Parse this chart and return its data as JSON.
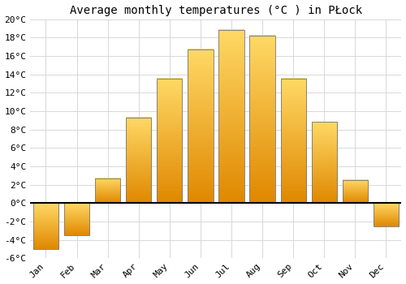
{
  "title": "Average monthly temperatures (°C ) in PŁock",
  "months": [
    "Jan",
    "Feb",
    "Mar",
    "Apr",
    "May",
    "Jun",
    "Jul",
    "Aug",
    "Sep",
    "Oct",
    "Nov",
    "Dec"
  ],
  "values": [
    -5.0,
    -3.5,
    2.7,
    9.3,
    13.5,
    16.7,
    18.8,
    18.2,
    13.5,
    8.8,
    2.5,
    -2.5
  ],
  "bar_color_top": "#FFD966",
  "bar_color_bottom": "#E08800",
  "bar_edge_color": "#777777",
  "ylim": [
    -6,
    20
  ],
  "yticks": [
    -6,
    -4,
    -2,
    0,
    2,
    4,
    6,
    8,
    10,
    12,
    14,
    16,
    18,
    20
  ],
  "ytick_labels": [
    "-6°C",
    "-4°C",
    "-2°C",
    "0°C",
    "2°C",
    "4°C",
    "6°C",
    "8°C",
    "10°C",
    "12°C",
    "14°C",
    "16°C",
    "18°C",
    "20°C"
  ],
  "background_color": "#ffffff",
  "grid_color": "#d8d8d8",
  "title_fontsize": 10,
  "tick_fontsize": 8,
  "bar_width": 0.82
}
